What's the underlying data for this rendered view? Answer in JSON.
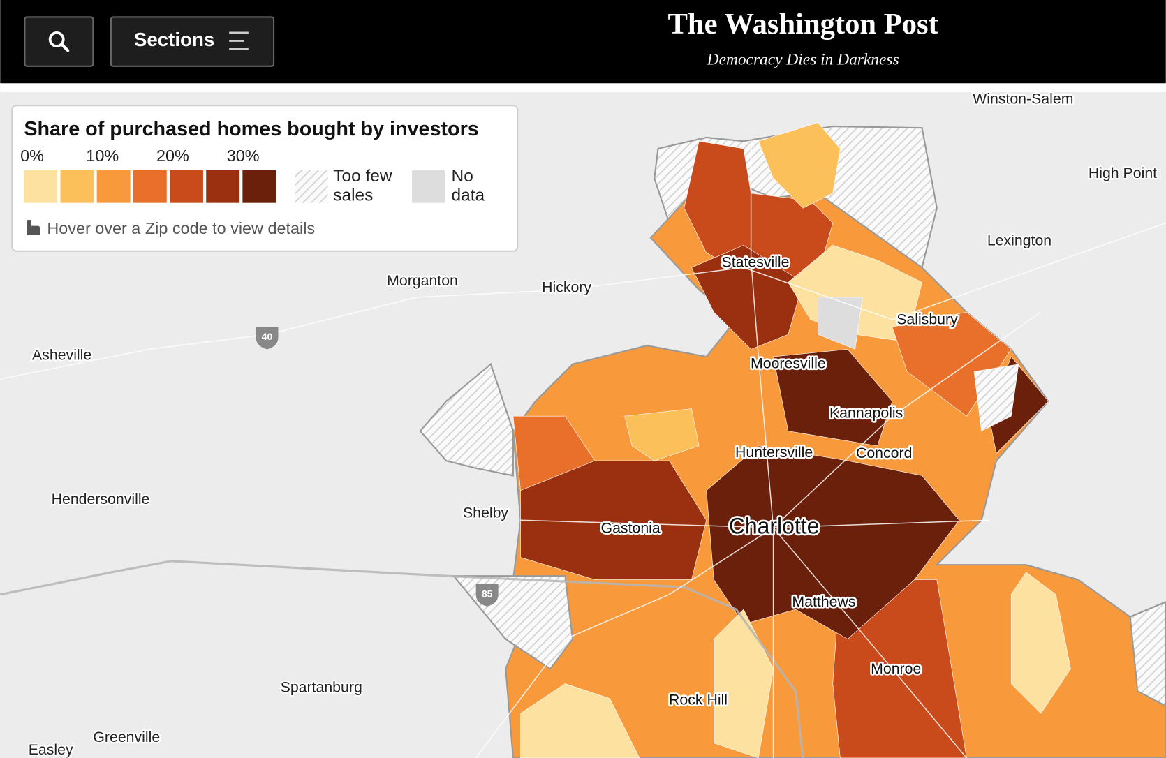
{
  "header": {
    "sections": "Sections",
    "logo": "The Washington Post",
    "tagline": "Democracy Dies in Darkness"
  },
  "legend": {
    "title": "Share of purchased homes bought by investors",
    "ticks": [
      "0%",
      "10%",
      "20%",
      "30%"
    ],
    "colors": [
      "#fde1a0",
      "#fbc05a",
      "#f89a3c",
      "#e8702a",
      "#c94a1b",
      "#9a3010",
      "#6b200b"
    ],
    "too_few": [
      "Too few",
      "sales"
    ],
    "no_data": [
      "No",
      "data"
    ],
    "hint": "Hover over a Zip code to view details"
  },
  "map": {
    "cities": [
      "Winston-Salem",
      "High Point",
      "Lexington",
      "Statesville",
      "Morganton",
      "Hickory",
      "Salisbury",
      "Asheville",
      "Mooresville",
      "Kannapolis",
      "Huntersville",
      "Concord",
      "Hendersonville",
      "Shelby",
      "Gastonia",
      "Charlotte",
      "Matthews",
      "Monroe",
      "Spartanburg",
      "Rock Hill",
      "Greenville",
      "Easley"
    ],
    "highways": [
      "40",
      "85"
    ]
  }
}
